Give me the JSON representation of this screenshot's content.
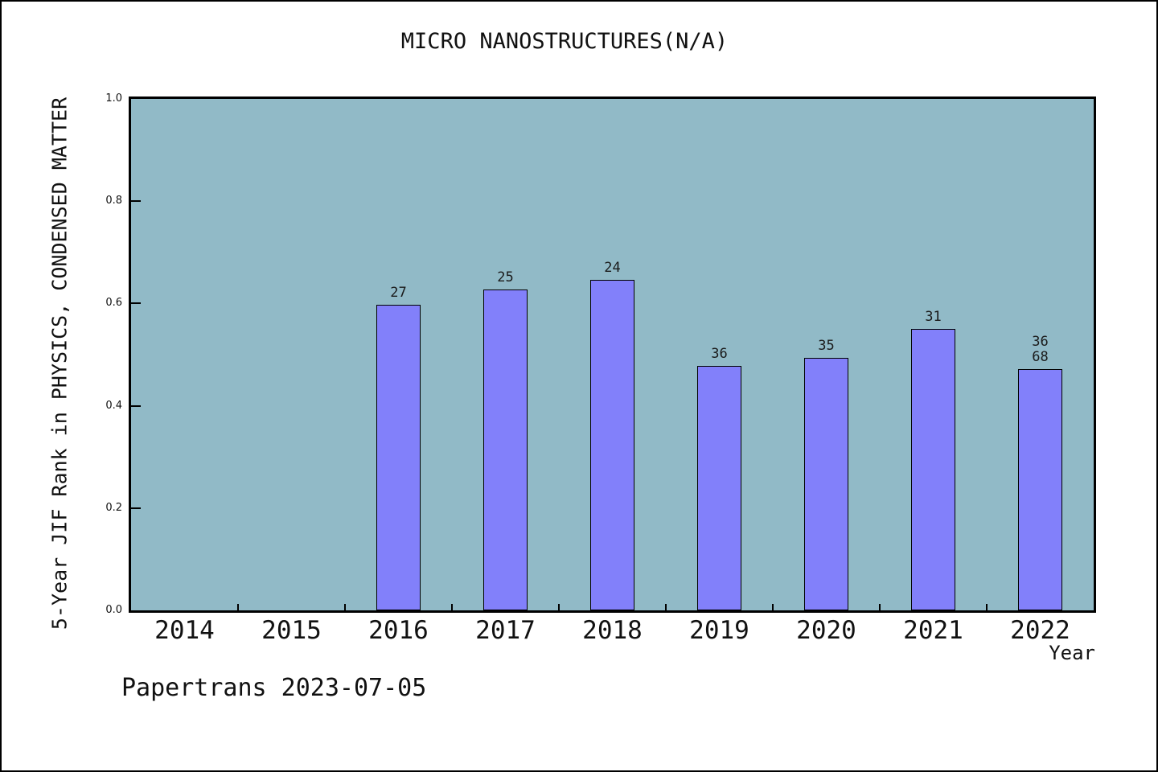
{
  "title": "MICRO NANOSTRUCTURES(N/A)",
  "footer": "Papertrans 2023-07-05",
  "colors": {
    "plot_bg": "#91bac7",
    "bar_fill": "#8280fa",
    "bar_border": "#000000",
    "axis": "#000000"
  },
  "chart_data": {
    "type": "bar",
    "title": "MICRO NANOSTRUCTURES(N/A)",
    "xlabel": "Year",
    "ylabel": "5-Year JIF Rank in PHYSICS, CONDENSED MATTER",
    "categories": [
      "2014",
      "2015",
      "2016",
      "2017",
      "2018",
      "2019",
      "2020",
      "2021",
      "2022"
    ],
    "y_ticks": [
      0.0,
      0.2,
      0.4,
      0.6,
      0.8,
      1.0
    ],
    "ylim": [
      0,
      1
    ],
    "grid": false,
    "legend": "none",
    "bars": [
      {
        "year": "2016",
        "value": 0.597,
        "labels": [
          "27"
        ]
      },
      {
        "year": "2017",
        "value": 0.627,
        "labels": [
          "25"
        ]
      },
      {
        "year": "2018",
        "value": 0.647,
        "labels": [
          "24"
        ]
      },
      {
        "year": "2019",
        "value": 0.478,
        "labels": [
          "36"
        ]
      },
      {
        "year": "2020",
        "value": 0.493,
        "labels": [
          "35"
        ]
      },
      {
        "year": "2021",
        "value": 0.551,
        "labels": [
          "31"
        ]
      },
      {
        "year": "2022",
        "value": 0.471,
        "labels": [
          "36",
          "68"
        ]
      }
    ]
  }
}
